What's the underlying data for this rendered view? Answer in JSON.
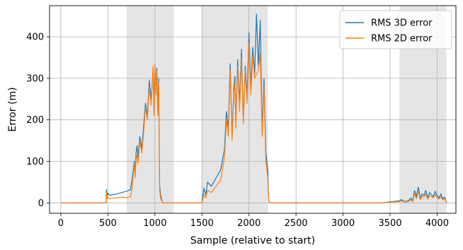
{
  "chart_data": {
    "type": "line",
    "title": "",
    "xlabel": "Sample (relative to start)",
    "ylabel": "Error (m)",
    "xlim": [
      -120,
      4200
    ],
    "ylim": [
      -25,
      475
    ],
    "xticks": [
      0,
      500,
      1000,
      1500,
      2000,
      2500,
      3000,
      3500,
      4000
    ],
    "yticks": [
      0,
      100,
      200,
      300,
      400
    ],
    "grid": true,
    "legend_position": "top-right",
    "shaded_regions": [
      {
        "x0": 700,
        "x1": 1200
      },
      {
        "x0": 1500,
        "x1": 2200
      },
      {
        "x0": 3600,
        "x1": 4100
      }
    ],
    "series": [
      {
        "name": "RMS 3D error",
        "color": "#1f77b4",
        "x": [
          0,
          480,
          485,
          490,
          500,
          520,
          560,
          600,
          650,
          700,
          720,
          740,
          760,
          780,
          790,
          800,
          810,
          820,
          840,
          860,
          880,
          900,
          920,
          940,
          960,
          980,
          990,
          1000,
          1010,
          1020,
          1030,
          1040,
          1050,
          1060,
          1080,
          1100,
          1200,
          1500,
          1520,
          1540,
          1560,
          1600,
          1650,
          1700,
          1740,
          1760,
          1780,
          1800,
          1820,
          1840,
          1850,
          1860,
          1880,
          1900,
          1920,
          1940,
          1960,
          1980,
          2000,
          2020,
          2040,
          2060,
          2080,
          2100,
          2120,
          2140,
          2160,
          2180,
          2200,
          2210,
          2220,
          2300,
          2800,
          3400,
          3600,
          3620,
          3660,
          3700,
          3720,
          3740,
          3760,
          3780,
          3800,
          3820,
          3840,
          3860,
          3880,
          3900,
          3920,
          3940,
          3960,
          3980,
          4000,
          4020,
          4040,
          4060,
          4080,
          4100
        ],
        "y": [
          0,
          0,
          32,
          16,
          24,
          18,
          20,
          22,
          25,
          28,
          30,
          32,
          60,
          100,
          70,
          120,
          138,
          110,
          160,
          130,
          185,
          240,
          210,
          295,
          250,
          320,
          220,
          330,
          280,
          325,
          220,
          300,
          40,
          20,
          0,
          0,
          0,
          0,
          35,
          20,
          50,
          40,
          60,
          80,
          130,
          220,
          180,
          335,
          160,
          280,
          305,
          190,
          345,
          240,
          370,
          200,
          330,
          260,
          410,
          280,
          375,
          310,
          455,
          330,
          440,
          170,
          300,
          120,
          80,
          5,
          0,
          0,
          0,
          0,
          5,
          8,
          3,
          6,
          12,
          5,
          30,
          15,
          38,
          10,
          22,
          18,
          30,
          12,
          25,
          20,
          15,
          28,
          18,
          12,
          22,
          10,
          14,
          0
        ],
        "nostroke_last": true
      },
      {
        "name": "RMS 2D error",
        "color": "#ff7f0e",
        "x": [
          0,
          480,
          485,
          490,
          500,
          520,
          560,
          600,
          650,
          700,
          720,
          740,
          760,
          780,
          790,
          800,
          810,
          820,
          840,
          860,
          880,
          900,
          920,
          940,
          960,
          980,
          990,
          1000,
          1010,
          1020,
          1030,
          1040,
          1050,
          1060,
          1080,
          1100,
          1200,
          1500,
          1520,
          1540,
          1560,
          1600,
          1650,
          1700,
          1740,
          1760,
          1780,
          1800,
          1820,
          1840,
          1850,
          1860,
          1880,
          1900,
          1920,
          1940,
          1960,
          1980,
          2000,
          2020,
          2040,
          2060,
          2080,
          2100,
          2120,
          2140,
          2160,
          2180,
          2200,
          2210,
          2220,
          2300,
          2800,
          3400,
          3600,
          3620,
          3660,
          3700,
          3720,
          3740,
          3760,
          3780,
          3800,
          3820,
          3840,
          3860,
          3880,
          3900,
          3920,
          3940,
          3960,
          3980,
          4000,
          4020,
          4040,
          4060,
          4080,
          4100
        ],
        "y": [
          0,
          0,
          25,
          10,
          14,
          10,
          12,
          12,
          14,
          12,
          14,
          15,
          40,
          95,
          60,
          105,
          115,
          95,
          150,
          120,
          170,
          230,
          200,
          280,
          235,
          330,
          210,
          335,
          260,
          318,
          210,
          290,
          30,
          12,
          0,
          0,
          0,
          0,
          20,
          12,
          30,
          25,
          40,
          55,
          110,
          200,
          160,
          320,
          150,
          265,
          290,
          180,
          330,
          220,
          350,
          190,
          320,
          240,
          385,
          260,
          355,
          300,
          310,
          320,
          360,
          160,
          280,
          100,
          60,
          3,
          0,
          0,
          0,
          0,
          3,
          5,
          2,
          4,
          8,
          3,
          22,
          10,
          28,
          8,
          16,
          14,
          22,
          9,
          18,
          15,
          12,
          20,
          13,
          9,
          15,
          7,
          10,
          0
        ]
      }
    ]
  }
}
